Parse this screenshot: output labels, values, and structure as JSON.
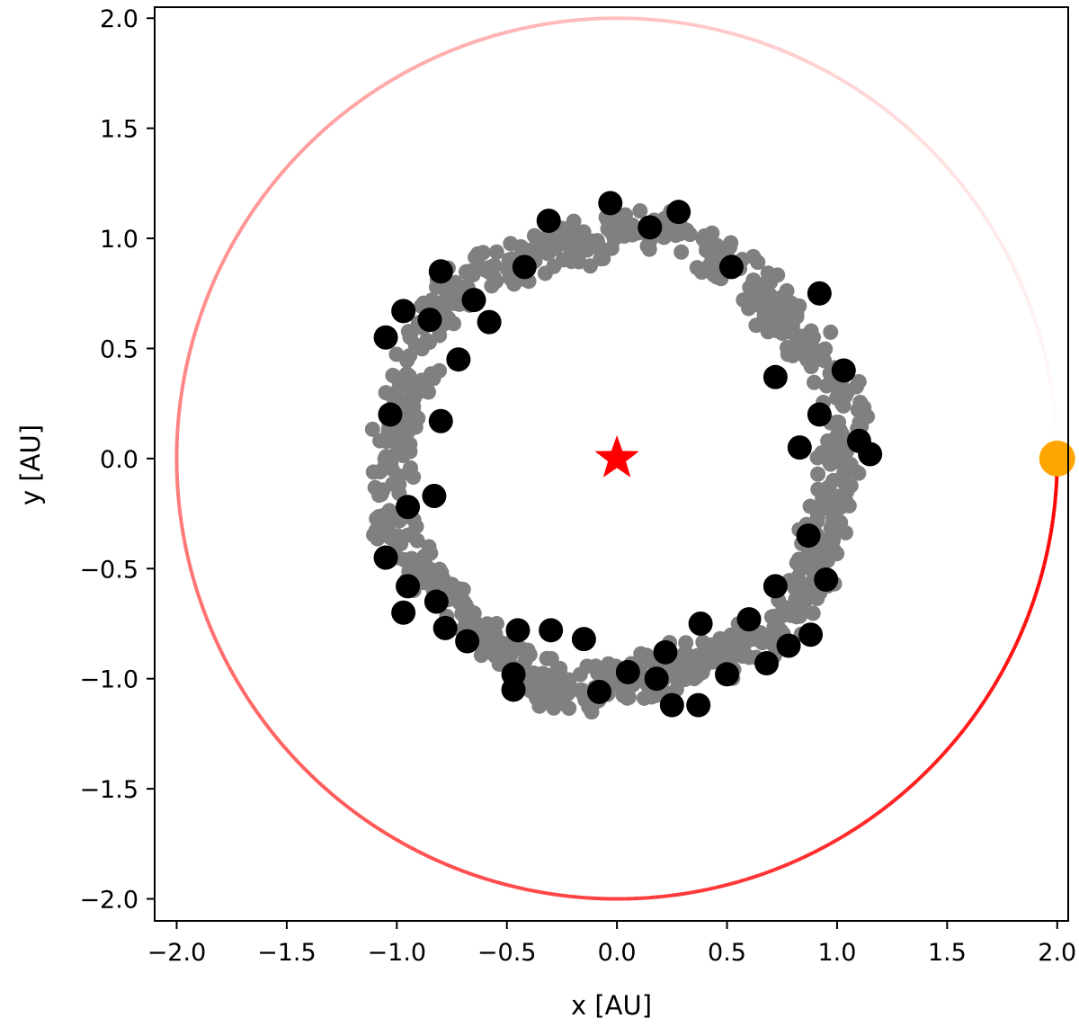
{
  "chart_data": {
    "type": "scatter",
    "title": "",
    "xlabel": "x [AU]",
    "ylabel": "y [AU]",
    "xlim": [
      -2.1,
      2.05
    ],
    "ylim": [
      -2.1,
      2.05
    ],
    "xticks": [
      -2.0,
      -1.5,
      -1.0,
      -0.5,
      0.0,
      0.5,
      1.0,
      1.5,
      2.0
    ],
    "yticks": [
      -2.0,
      -1.5,
      -1.0,
      -0.5,
      0.0,
      0.5,
      1.0,
      1.5,
      2.0
    ],
    "xtick_labels": [
      "−2.0",
      "−1.5",
      "−1.0",
      "−0.5",
      "0.0",
      "0.5",
      "1.0",
      "1.5",
      "2.0"
    ],
    "ytick_labels": [
      "−2.0",
      "−1.5",
      "−1.0",
      "−0.5",
      "0.0",
      "0.5",
      "1.0",
      "1.5",
      "2.0"
    ],
    "grid": false,
    "legend": false,
    "colors": {
      "star": "#ff0000",
      "orbit": "#ff0000",
      "planet": "#ffa500",
      "small_bodies": "#808080",
      "large_bodies": "#000000"
    },
    "star": {
      "x": 0.0,
      "y": 0.0
    },
    "planet": {
      "x": 2.0,
      "y": 0.0
    },
    "orbit": {
      "radius": 2.0
    },
    "ring": {
      "inner_radius": 0.9,
      "outer_radius": 1.15
    },
    "large_bodies": [
      [
        -0.03,
        1.16
      ],
      [
        0.15,
        1.05
      ],
      [
        -0.31,
        1.08
      ],
      [
        0.28,
        1.12
      ],
      [
        -0.8,
        0.85
      ],
      [
        -0.65,
        0.72
      ],
      [
        0.52,
        0.87
      ],
      [
        0.92,
        0.75
      ],
      [
        -0.97,
        0.67
      ],
      [
        -0.42,
        0.87
      ],
      [
        -0.72,
        0.45
      ],
      [
        -1.05,
        0.55
      ],
      [
        0.72,
        0.37
      ],
      [
        -0.85,
        0.63
      ],
      [
        1.03,
        0.4
      ],
      [
        -1.03,
        0.2
      ],
      [
        -0.8,
        0.17
      ],
      [
        0.92,
        0.2
      ],
      [
        0.83,
        0.05
      ],
      [
        1.15,
        0.02
      ],
      [
        -0.83,
        -0.17
      ],
      [
        -0.95,
        -0.22
      ],
      [
        1.1,
        0.08
      ],
      [
        -1.05,
        -0.45
      ],
      [
        0.87,
        -0.35
      ],
      [
        -0.95,
        -0.58
      ],
      [
        0.95,
        -0.55
      ],
      [
        -0.82,
        -0.65
      ],
      [
        0.72,
        -0.58
      ],
      [
        -0.97,
        -0.7
      ],
      [
        -0.78,
        -0.77
      ],
      [
        0.6,
        -0.73
      ],
      [
        -0.68,
        -0.83
      ],
      [
        0.38,
        -0.75
      ],
      [
        -0.45,
        -0.78
      ],
      [
        0.88,
        -0.8
      ],
      [
        -0.3,
        -0.78
      ],
      [
        0.22,
        -0.88
      ],
      [
        -0.15,
        -0.82
      ],
      [
        0.05,
        -0.97
      ],
      [
        -0.47,
        -0.98
      ],
      [
        0.5,
        -0.98
      ],
      [
        -0.08,
        -1.06
      ],
      [
        0.25,
        -1.12
      ],
      [
        0.37,
        -1.12
      ],
      [
        0.18,
        -1.0
      ],
      [
        0.68,
        -0.93
      ],
      [
        0.78,
        -0.85
      ],
      [
        -0.47,
        -1.05
      ],
      [
        -0.58,
        0.62
      ]
    ]
  }
}
